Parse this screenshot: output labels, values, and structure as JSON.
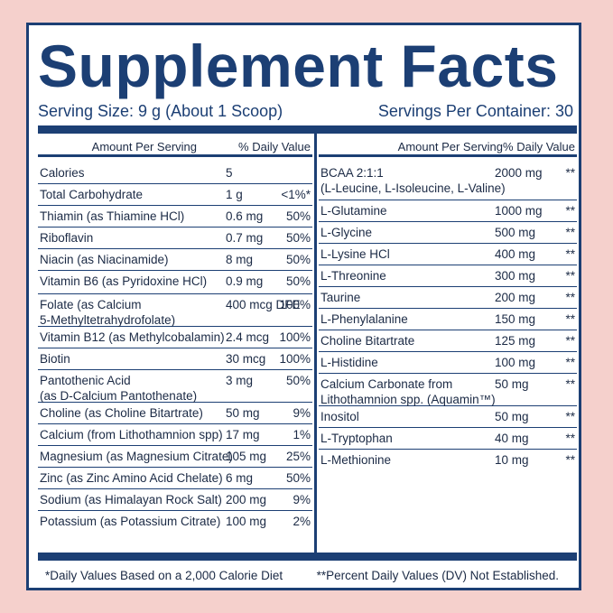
{
  "title": "Supplement Facts",
  "serving_size": "Serving Size: 9 g (About 1 Scoop)",
  "servings_per_container": "Servings Per Container: 30",
  "headers": {
    "amount": "Amount Per Serving",
    "dv": "% Daily Value"
  },
  "left_rows": [
    {
      "name": "Calories",
      "amount": "5",
      "dv": ""
    },
    {
      "name": "Total Carbohydrate",
      "amount": "1 g",
      "dv": "<1%*"
    },
    {
      "name": "Thiamin (as Thiamine HCl)",
      "amount": "0.6 mg",
      "dv": "50%"
    },
    {
      "name": "Riboflavin",
      "amount": "0.7 mg",
      "dv": "50%"
    },
    {
      "name": "Niacin (as Niacinamide)",
      "amount": "8 mg",
      "dv": "50%"
    },
    {
      "name": "Vitamin B6 (as Pyridoxine HCl)",
      "amount": "0.9 mg",
      "dv": "50%"
    },
    {
      "name": "Folate (as Calcium",
      "name2": "5-Methyltetrahydrofolate)",
      "amount": "400 mcg DFE",
      "dv": "100%"
    },
    {
      "name": "Vitamin B12 (as Methylcobalamin)",
      "amount": "2.4 mcg",
      "dv": "100%"
    },
    {
      "name": "Biotin",
      "amount": "30 mcg",
      "dv": "100%"
    },
    {
      "name": "Pantothenic Acid",
      "name2": "(as D-Calcium Pantothenate)",
      "amount": "3 mg",
      "dv": "50%"
    },
    {
      "name": "Choline (as Choline Bitartrate)",
      "amount": "50 mg",
      "dv": "9%"
    },
    {
      "name": "Calcium (from Lithothamnion spp)",
      "amount": "17 mg",
      "dv": "1%"
    },
    {
      "name": "Magnesium (as Magnesium Citrate)",
      "amount": "105 mg",
      "dv": "25%"
    },
    {
      "name": "Zinc (as Zinc Amino Acid Chelate)",
      "amount": "6 mg",
      "dv": "50%"
    },
    {
      "name": "Sodium (as Himalayan Rock Salt)",
      "amount": "200 mg",
      "dv": "9%"
    },
    {
      "name": "Potassium (as Potassium Citrate)",
      "amount": "100 mg",
      "dv": "2%"
    }
  ],
  "right_rows": [
    {
      "name": "BCAA 2:1:1",
      "name2": "(L-Leucine, L-Isoleucine, L-Valine)",
      "amount": "2000 mg",
      "dv": "**"
    },
    {
      "name": "L-Glutamine",
      "amount": "1000 mg",
      "dv": "**"
    },
    {
      "name": "L-Glycine",
      "amount": "500 mg",
      "dv": "**"
    },
    {
      "name": "L-Lysine HCl",
      "amount": "400 mg",
      "dv": "**"
    },
    {
      "name": "L-Threonine",
      "amount": "300 mg",
      "dv": "**"
    },
    {
      "name": "Taurine",
      "amount": "200 mg",
      "dv": "**"
    },
    {
      "name": "L-Phenylalanine",
      "amount": "150 mg",
      "dv": "**"
    },
    {
      "name": "Choline Bitartrate",
      "amount": "125 mg",
      "dv": "**"
    },
    {
      "name": "L-Histidine",
      "amount": "100 mg",
      "dv": "**"
    },
    {
      "name": "Calcium Carbonate from",
      "name2": "Lithothamnion spp. (Aquamin™)",
      "amount": "50 mg",
      "dv": "**"
    },
    {
      "name": "Inositol",
      "amount": "50 mg",
      "dv": "**"
    },
    {
      "name": "L-Tryptophan",
      "amount": "40 mg",
      "dv": "**"
    },
    {
      "name": "L-Methionine",
      "amount": "10 mg",
      "dv": "**"
    }
  ],
  "footnote_left": "*Daily Values Based on a 2,000 Calorie Diet",
  "footnote_right": "**Percent Daily Values (DV) Not Established.",
  "colors": {
    "navy": "#1c3f74",
    "background": "#f5d0cc"
  }
}
